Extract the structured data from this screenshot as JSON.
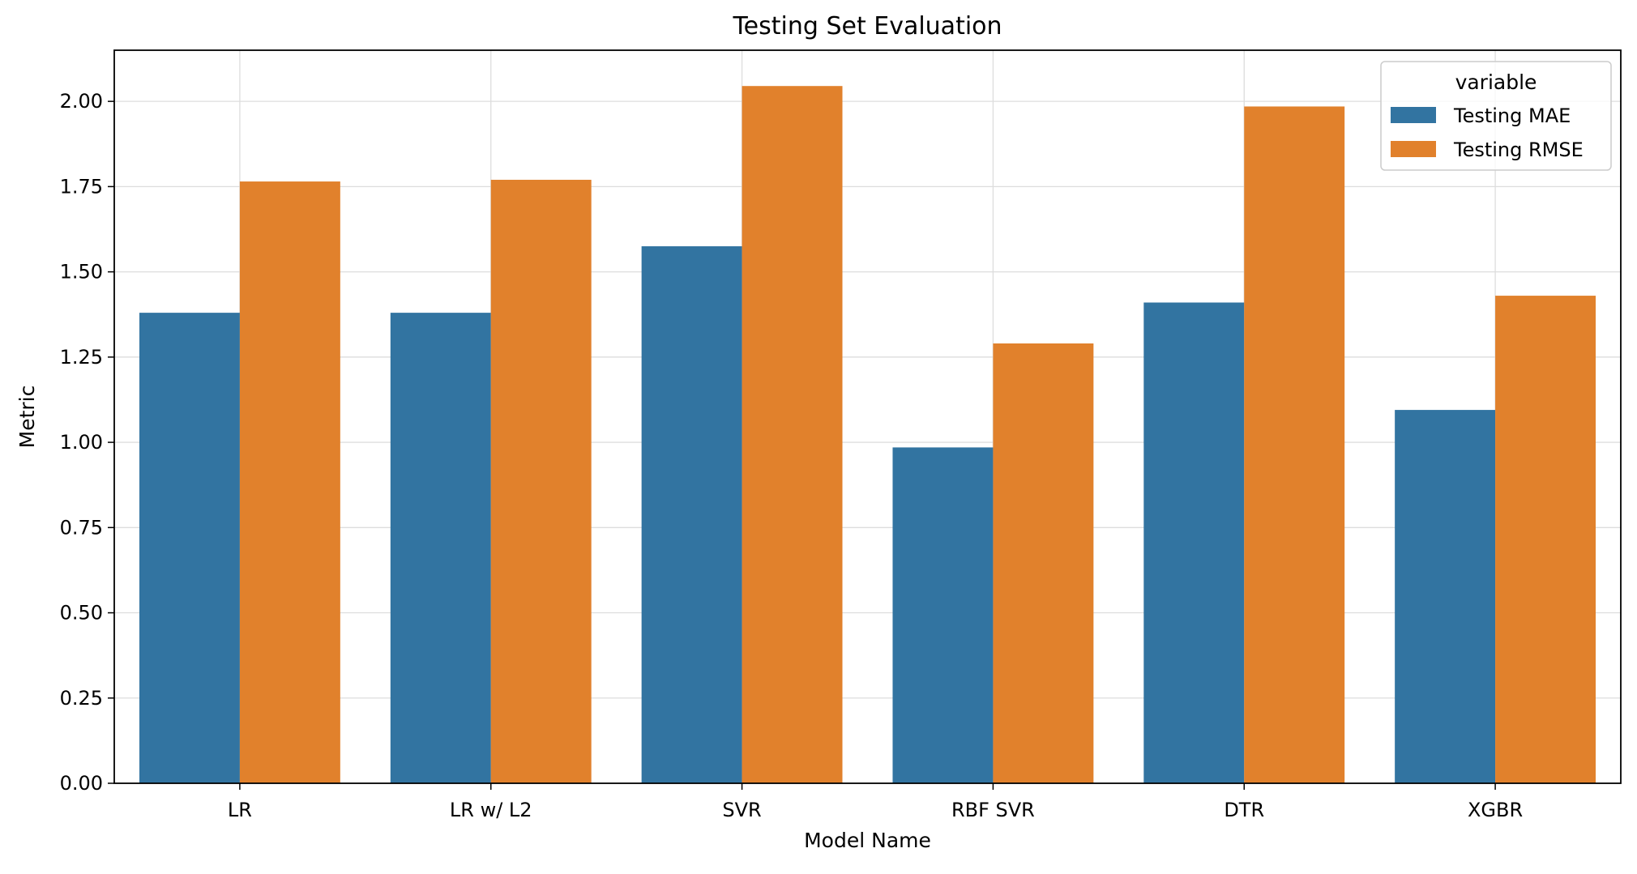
{
  "chart_data": {
    "type": "bar",
    "title": "Testing Set Evaluation",
    "xlabel": "Model Name",
    "ylabel": "Metric",
    "categories": [
      "LR",
      "LR w/ L2",
      "SVR",
      "RBF SVR",
      "DTR",
      "XGBR"
    ],
    "series": [
      {
        "name": "Testing MAE",
        "color": "#3274a1",
        "values": [
          1.38,
          1.38,
          1.575,
          0.985,
          1.41,
          1.095
        ]
      },
      {
        "name": "Testing RMSE",
        "color": "#e1812c",
        "values": [
          1.765,
          1.77,
          2.045,
          1.29,
          1.985,
          1.43
        ]
      }
    ],
    "ylim": [
      0,
      2.15
    ],
    "yticks": [
      0.0,
      0.25,
      0.5,
      0.75,
      1.0,
      1.25,
      1.5,
      1.75,
      2.0
    ],
    "ytick_labels": [
      "0.00",
      "0.25",
      "0.50",
      "0.75",
      "1.00",
      "1.25",
      "1.50",
      "1.75",
      "2.00"
    ],
    "grid": true,
    "legend": {
      "title": "variable",
      "placement": "top-right"
    }
  }
}
